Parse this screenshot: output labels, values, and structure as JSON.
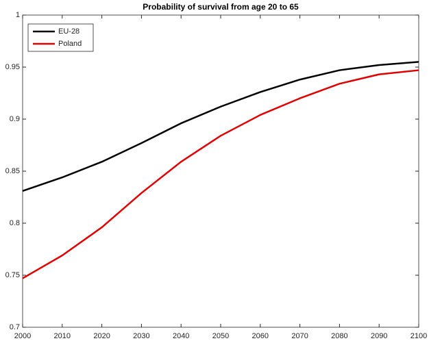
{
  "chart_data": {
    "type": "line",
    "title": "Probability of survival from age 20 to 65",
    "x": [
      2000,
      2010,
      2020,
      2030,
      2040,
      2050,
      2060,
      2070,
      2080,
      2090,
      2100
    ],
    "series": [
      {
        "name": "EU-28",
        "color": "#000000",
        "values": [
          0.831,
          0.844,
          0.859,
          0.877,
          0.896,
          0.912,
          0.926,
          0.938,
          0.947,
          0.952,
          0.955
        ]
      },
      {
        "name": "Poland",
        "color": "#e00000",
        "values": [
          0.747,
          0.769,
          0.796,
          0.829,
          0.859,
          0.884,
          0.904,
          0.92,
          0.934,
          0.943,
          0.947
        ]
      }
    ],
    "xlim": [
      2000,
      2100
    ],
    "xticks": [
      2000,
      2010,
      2020,
      2030,
      2040,
      2050,
      2060,
      2070,
      2080,
      2090,
      2100
    ],
    "ylim": [
      0.7,
      1
    ],
    "yticks": [
      0.7,
      0.75,
      0.8,
      0.85,
      0.9,
      0.95,
      1
    ],
    "legend": "upper-left",
    "grid": false
  }
}
